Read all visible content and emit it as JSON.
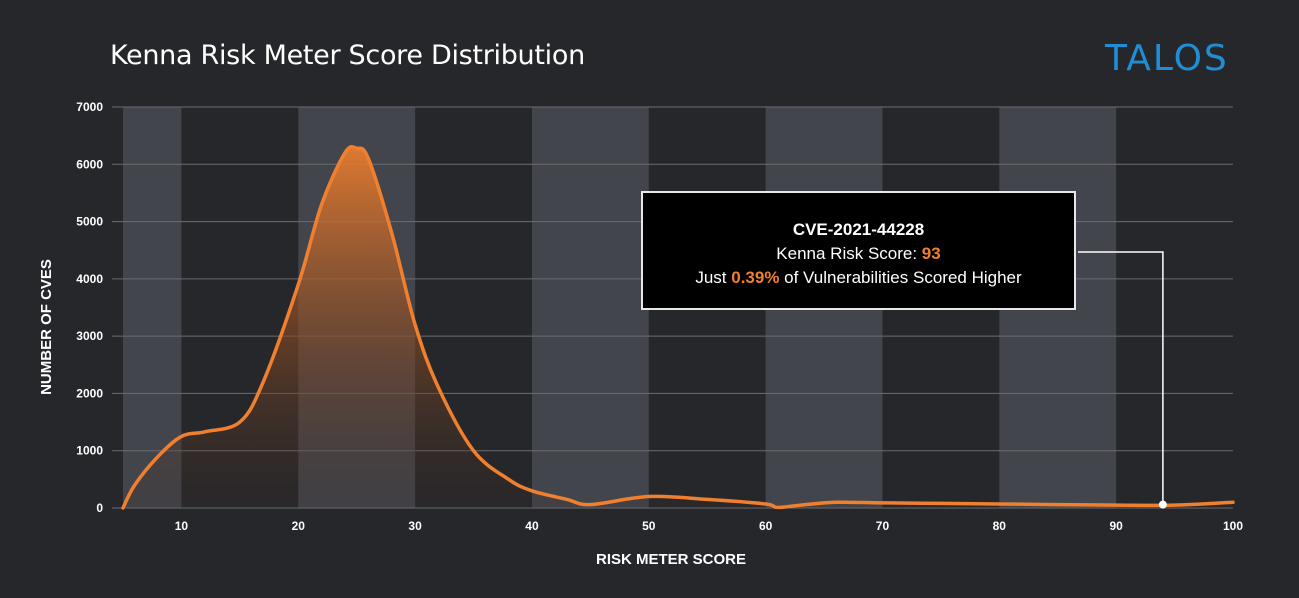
{
  "header": {
    "title": "Kenna Risk Meter Score Distribution",
    "logo_text": "TALOS"
  },
  "colors": {
    "background": "#26272b",
    "band": "#42454c",
    "grid": "#6a6c72",
    "line": "#f07f2e",
    "logo": "#1e8fd6"
  },
  "callout": {
    "cve_id": "CVE-2021-44228",
    "score_prefix": "Kenna Risk Score: ",
    "score_value": "93",
    "line2_prefix": "Just ",
    "percent": "0.39%",
    "line2_suffix": " of Vulnerabilities Scored Higher",
    "marker_x": 94,
    "marker_y": 60
  },
  "chart_data": {
    "type": "area",
    "title": "Kenna Risk Meter Score Distribution",
    "xlabel": "RISK METER SCORE",
    "ylabel": "NUMBER OF CVES",
    "xlim": [
      5,
      100
    ],
    "ylim": [
      0,
      7000
    ],
    "x_ticks": [
      "10",
      "20",
      "30",
      "40",
      "50",
      "60",
      "70",
      "80",
      "90",
      "100"
    ],
    "y_ticks": [
      "0",
      "1000",
      "2000",
      "3000",
      "4000",
      "5000",
      "6000",
      "7000"
    ],
    "shaded_bands": [
      [
        5,
        10
      ],
      [
        20,
        30
      ],
      [
        40,
        50
      ],
      [
        60,
        70
      ],
      [
        80,
        90
      ]
    ],
    "series": [
      {
        "name": "CVEs",
        "x": [
          5,
          6,
          8,
          10,
          12,
          15,
          17,
          20,
          22,
          24,
          25,
          26,
          28,
          30,
          32,
          35,
          38,
          40,
          43,
          45,
          50,
          55,
          60,
          61,
          63,
          66,
          70,
          75,
          80,
          85,
          90,
          95,
          100
        ],
        "y": [
          0,
          400,
          900,
          1250,
          1330,
          1500,
          2200,
          3900,
          5300,
          6200,
          6280,
          6100,
          4800,
          3200,
          2100,
          1000,
          500,
          300,
          150,
          60,
          200,
          150,
          70,
          10,
          50,
          100,
          90,
          80,
          70,
          60,
          50,
          50,
          100
        ]
      }
    ]
  }
}
